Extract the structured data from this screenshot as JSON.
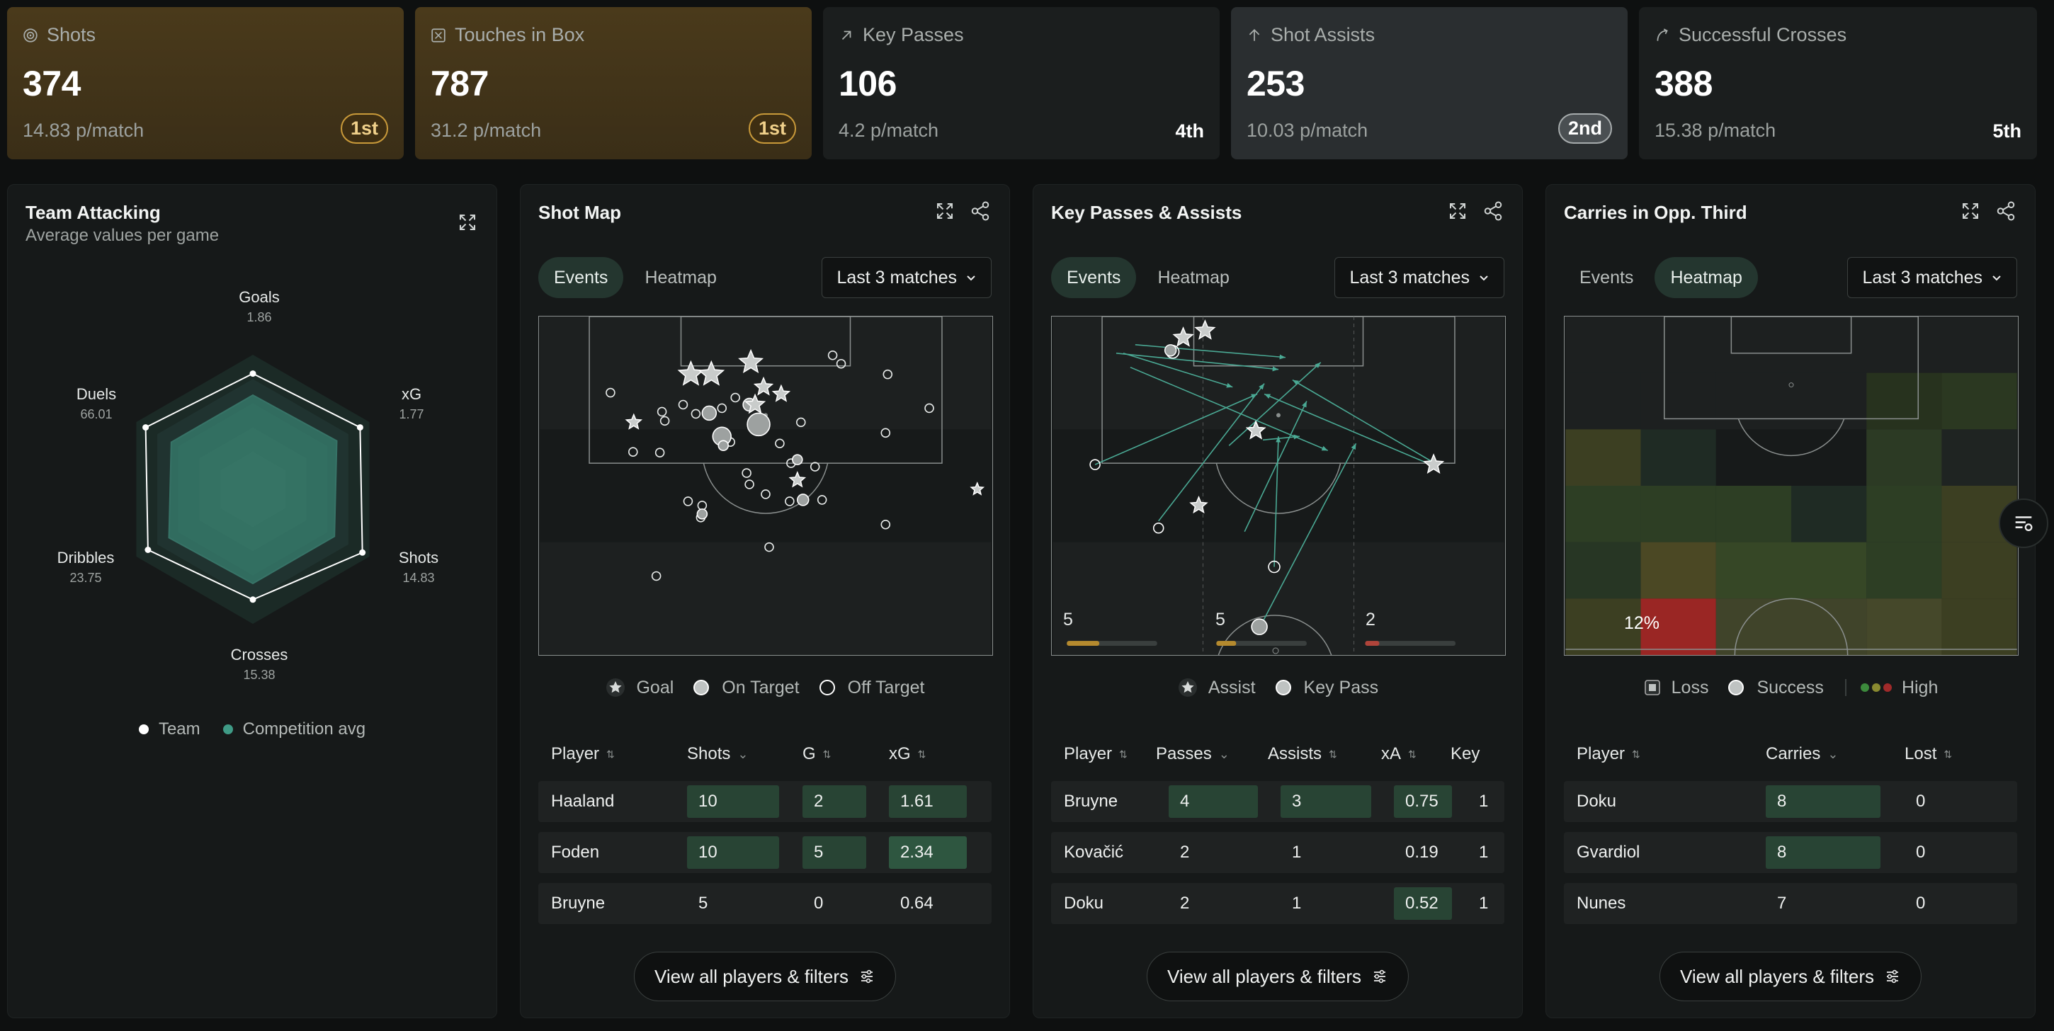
{
  "kpis": [
    {
      "label": "Shots",
      "value": "374",
      "per_match": "14.83 p/match",
      "rank": "1st",
      "icon": "target-icon"
    },
    {
      "label": "Touches in Box",
      "value": "787",
      "per_match": "31.2 p/match",
      "rank": "1st",
      "icon": "box-icon"
    },
    {
      "label": "Key Passes",
      "value": "106",
      "per_match": "4.2 p/match",
      "rank": "4th",
      "icon": "arrow-up-right-icon"
    },
    {
      "label": "Shot Assists",
      "value": "253",
      "per_match": "10.03 p/match",
      "rank": "2nd",
      "icon": "arrow-up-icon"
    },
    {
      "label": "Successful Crosses",
      "value": "388",
      "per_match": "15.38 p/match",
      "rank": "5th",
      "icon": "curve-arrow-icon"
    }
  ],
  "team_attacking": {
    "title": "Team Attacking",
    "subtitle": "Average values per game",
    "axes": [
      {
        "label": "Goals",
        "value": "1.86"
      },
      {
        "label": "xG",
        "value": "1.77"
      },
      {
        "label": "Shots",
        "value": "14.83"
      },
      {
        "label": "Crosses",
        "value": "15.38"
      },
      {
        "label": "Dribbles",
        "value": "23.75"
      },
      {
        "label": "Duels",
        "value": "66.01"
      }
    ],
    "team_levels": [
      0.86,
      0.92,
      0.94,
      0.82,
      0.9,
      0.92
    ],
    "avg_levels": [
      0.7,
      0.72,
      0.7,
      0.7,
      0.72,
      0.7
    ],
    "legend_team": "Team",
    "legend_avg": "Competition avg"
  },
  "shot_map": {
    "title": "Shot Map",
    "tabs": [
      "Events",
      "Heatmap"
    ],
    "range": "Last 3 matches",
    "legend": [
      "Goal",
      "On Target",
      "Off Target"
    ],
    "columns": [
      "Player",
      "Shots",
      "G",
      "xG"
    ],
    "rows": [
      [
        "Haaland",
        "10",
        "2",
        "1.61"
      ],
      [
        "Foden",
        "10",
        "5",
        "2.34"
      ],
      [
        "Bruyne",
        "5",
        "0",
        "0.64"
      ]
    ]
  },
  "key_passes": {
    "title": "Key Passes & Assists",
    "tabs": [
      "Events",
      "Heatmap"
    ],
    "range": "Last 3 matches",
    "zone_counts": [
      "5",
      "5",
      "2"
    ],
    "legend": [
      "Assist",
      "Key Pass"
    ],
    "columns": [
      "Player",
      "Passes",
      "Assists",
      "xA",
      "Key"
    ],
    "rows": [
      [
        "Bruyne",
        "4",
        "3",
        "0.75",
        "1"
      ],
      [
        "Kovačić",
        "2",
        "1",
        "0.19",
        "1"
      ],
      [
        "Doku",
        "2",
        "1",
        "0.52",
        "1"
      ]
    ]
  },
  "carries": {
    "title": "Carries in Opp. Third",
    "tabs": [
      "Events",
      "Heatmap"
    ],
    "range": "Last 3 matches",
    "cell_label": "12%",
    "legend": [
      "Loss",
      "Success",
      "High"
    ],
    "columns": [
      "Player",
      "Carries",
      "Lost"
    ],
    "rows": [
      [
        "Doku",
        "8",
        "0"
      ],
      [
        "Gvardiol",
        "8",
        "0"
      ],
      [
        "Nunes",
        "7",
        "0"
      ]
    ]
  },
  "view_all_label": "View all players & filters",
  "colors": {
    "accent": "#3f9b86",
    "gold": "#c99a3a",
    "panel": "#161919"
  }
}
